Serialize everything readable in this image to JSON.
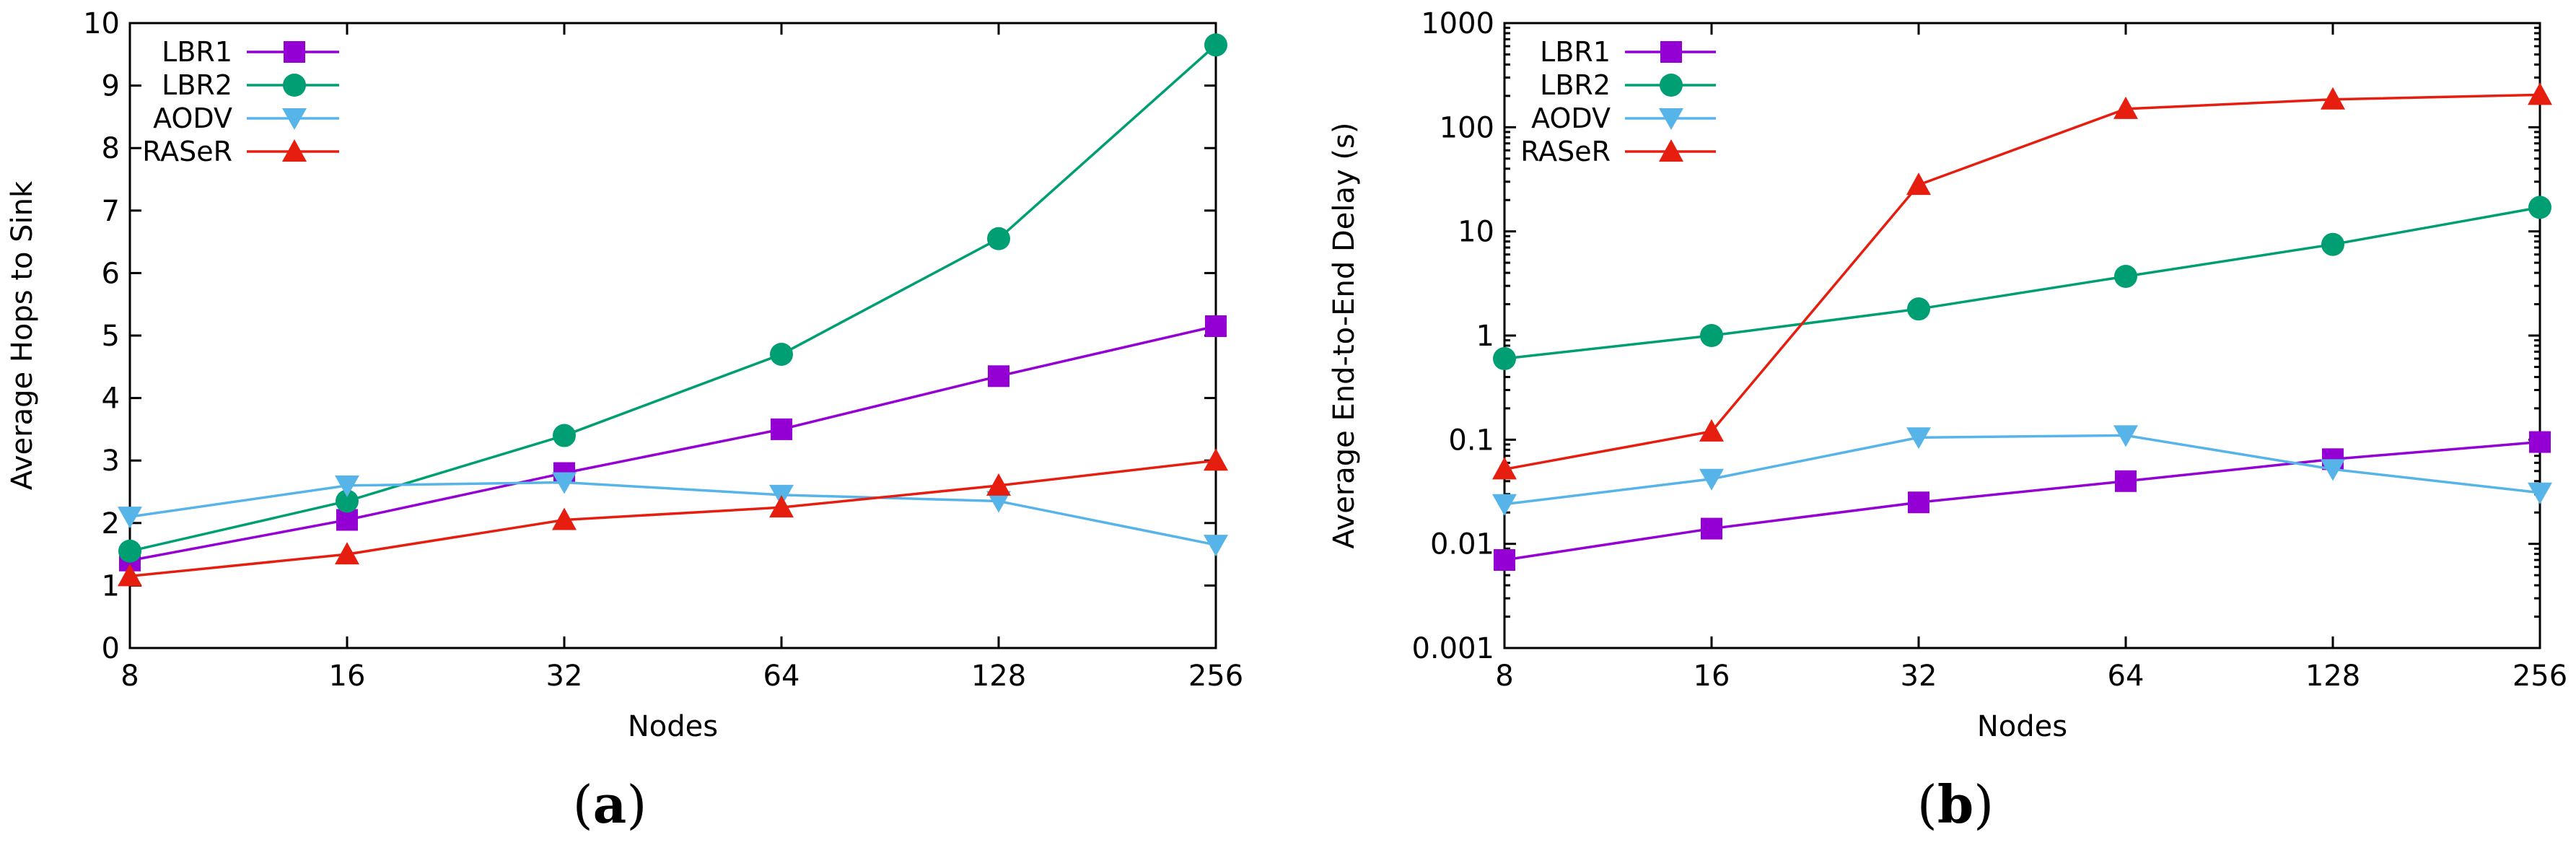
{
  "figure": {
    "captions": [
      "(a)",
      "(b)"
    ],
    "caption_letters": [
      "a",
      "b"
    ]
  },
  "chart_data": [
    {
      "type": "line",
      "panel": "a",
      "x_scale": "log2",
      "categories": [
        "8",
        "16",
        "32",
        "64",
        "128",
        "256"
      ],
      "x": [
        8,
        16,
        32,
        64,
        128,
        256
      ],
      "xlabel": "Nodes",
      "ylabel": "Average Hops to Sink",
      "y_scale": "linear",
      "ylim": [
        0,
        10
      ],
      "yticks": [
        0,
        1,
        2,
        3,
        4,
        5,
        6,
        7,
        8,
        9,
        10
      ],
      "ytick_labels": [
        "0",
        "1",
        "2",
        "3",
        "4",
        "5",
        "6",
        "7",
        "8",
        "9",
        "10"
      ],
      "legend_position": "top-left",
      "series": [
        {
          "name": "LBR1",
          "color": "#9400d3",
          "marker": "square",
          "values": [
            1.4,
            2.05,
            2.8,
            3.5,
            4.35,
            5.15
          ]
        },
        {
          "name": "LBR2",
          "color": "#009e73",
          "marker": "circle",
          "values": [
            1.55,
            2.35,
            3.4,
            4.7,
            6.55,
            9.65
          ]
        },
        {
          "name": "AODV",
          "color": "#56b4e9",
          "marker": "triangle-down",
          "values": [
            2.1,
            2.6,
            2.65,
            2.45,
            2.35,
            1.65
          ]
        },
        {
          "name": "RASeR",
          "color": "#e51e10",
          "marker": "triangle-up",
          "values": [
            1.15,
            1.5,
            2.05,
            2.25,
            2.6,
            3.0
          ]
        }
      ]
    },
    {
      "type": "line",
      "panel": "b",
      "x_scale": "log2",
      "categories": [
        "8",
        "16",
        "32",
        "64",
        "128",
        "256"
      ],
      "x": [
        8,
        16,
        32,
        64,
        128,
        256
      ],
      "xlabel": "Nodes",
      "ylabel": "Average End-to-End Delay (s)",
      "y_scale": "log10",
      "ylim": [
        0.001,
        1000
      ],
      "yticks": [
        0.001,
        0.01,
        0.1,
        1,
        10,
        100,
        1000
      ],
      "ytick_labels": [
        "0.001",
        "0.01",
        "0.1",
        "1",
        "10",
        "100",
        "1000"
      ],
      "legend_position": "top-left",
      "series": [
        {
          "name": "LBR1",
          "color": "#9400d3",
          "marker": "square",
          "values": [
            0.007,
            0.014,
            0.025,
            0.04,
            0.065,
            0.095
          ]
        },
        {
          "name": "LBR2",
          "color": "#009e73",
          "marker": "circle",
          "values": [
            0.6,
            1.0,
            1.8,
            3.7,
            7.5,
            17
          ]
        },
        {
          "name": "AODV",
          "color": "#56b4e9",
          "marker": "triangle-down",
          "values": [
            0.024,
            0.042,
            0.105,
            0.11,
            0.052,
            0.031
          ]
        },
        {
          "name": "RASeR",
          "color": "#e51e10",
          "marker": "triangle-up",
          "values": [
            0.052,
            0.12,
            28,
            150,
            185,
            205
          ]
        }
      ]
    }
  ]
}
